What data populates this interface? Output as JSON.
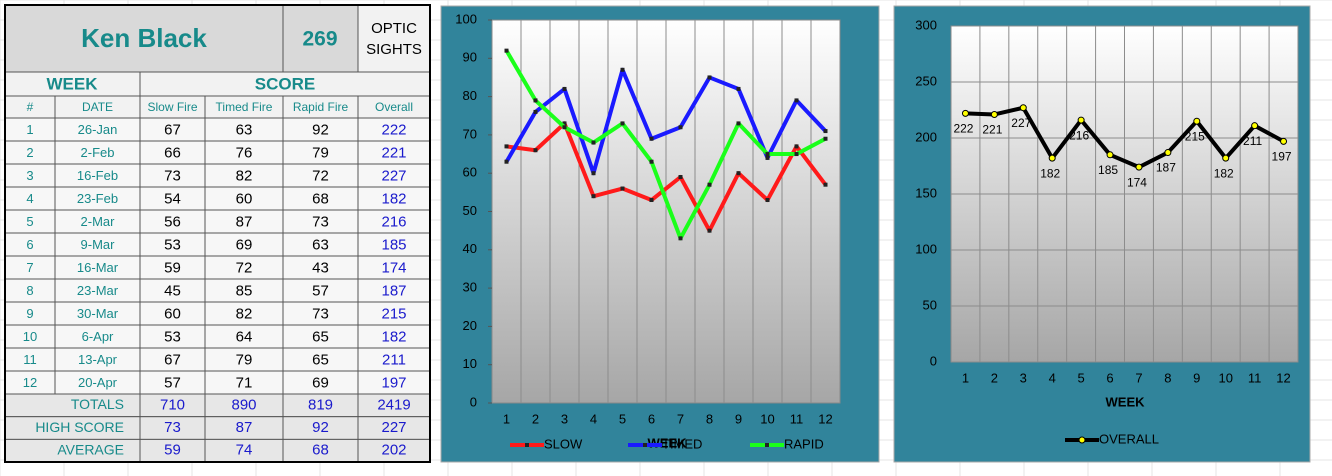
{
  "table": {
    "name": "Ken Black",
    "score": 269,
    "note": [
      "OPTIC",
      "SIGHTS"
    ],
    "group_headers": [
      "WEEK",
      "SCORE"
    ],
    "columns": [
      "#",
      "DATE",
      "Slow Fire",
      "Timed Fire",
      "Rapid Fire",
      "Overall"
    ],
    "rows": [
      [
        1,
        "26-Jan",
        67,
        63,
        92,
        222
      ],
      [
        2,
        "2-Feb",
        66,
        76,
        79,
        221
      ],
      [
        3,
        "16-Feb",
        73,
        82,
        72,
        227
      ],
      [
        4,
        "23-Feb",
        54,
        60,
        68,
        182
      ],
      [
        5,
        "2-Mar",
        56,
        87,
        73,
        216
      ],
      [
        6,
        "9-Mar",
        53,
        69,
        63,
        185
      ],
      [
        7,
        "16-Mar",
        59,
        72,
        43,
        174
      ],
      [
        8,
        "23-Mar",
        45,
        85,
        57,
        187
      ],
      [
        9,
        "30-Mar",
        60,
        82,
        73,
        215
      ],
      [
        10,
        "6-Apr",
        53,
        64,
        65,
        182
      ],
      [
        11,
        "13-Apr",
        67,
        79,
        65,
        211
      ],
      [
        12,
        "20-Apr",
        57,
        71,
        69,
        197
      ]
    ],
    "summary": [
      [
        "TOTALS",
        710,
        890,
        819,
        2419
      ],
      [
        "HIGH SCORE",
        73,
        87,
        92,
        227
      ],
      [
        "AVERAGE",
        59,
        74,
        68,
        202
      ]
    ]
  },
  "chart_data": [
    {
      "type": "line",
      "x_label": "WEEK",
      "categories": [
        1,
        2,
        3,
        4,
        5,
        6,
        7,
        8,
        9,
        10,
        11,
        12
      ],
      "ylim": [
        0,
        100
      ],
      "yticks": [
        0,
        10,
        20,
        30,
        40,
        50,
        60,
        70,
        80,
        90,
        100
      ],
      "grid": "x",
      "legend": "bottom",
      "series": [
        {
          "name": "SLOW",
          "color": "#ff1a1a",
          "values": [
            67,
            66,
            73,
            54,
            56,
            53,
            59,
            45,
            60,
            53,
            67,
            57
          ]
        },
        {
          "name": "TIMED",
          "color": "#1a1aff",
          "values": [
            63,
            76,
            82,
            60,
            87,
            69,
            72,
            85,
            82,
            64,
            79,
            71
          ]
        },
        {
          "name": "RAPID",
          "color": "#1aff1a",
          "values": [
            92,
            79,
            72,
            68,
            73,
            63,
            43,
            57,
            73,
            65,
            65,
            69
          ]
        }
      ]
    },
    {
      "type": "line",
      "x_label": "WEEK",
      "categories": [
        1,
        2,
        3,
        4,
        5,
        6,
        7,
        8,
        9,
        10,
        11,
        12
      ],
      "ylim": [
        0,
        300
      ],
      "yticks": [
        0,
        50,
        100,
        150,
        200,
        250,
        300
      ],
      "grid": "both",
      "legend": "bottom",
      "data_labels": true,
      "series": [
        {
          "name": "OVERALL",
          "color": "#000000",
          "marker_color": "#ffff00",
          "values": [
            222,
            221,
            227,
            182,
            216,
            185,
            174,
            187,
            215,
            182,
            211,
            197
          ]
        }
      ]
    }
  ]
}
